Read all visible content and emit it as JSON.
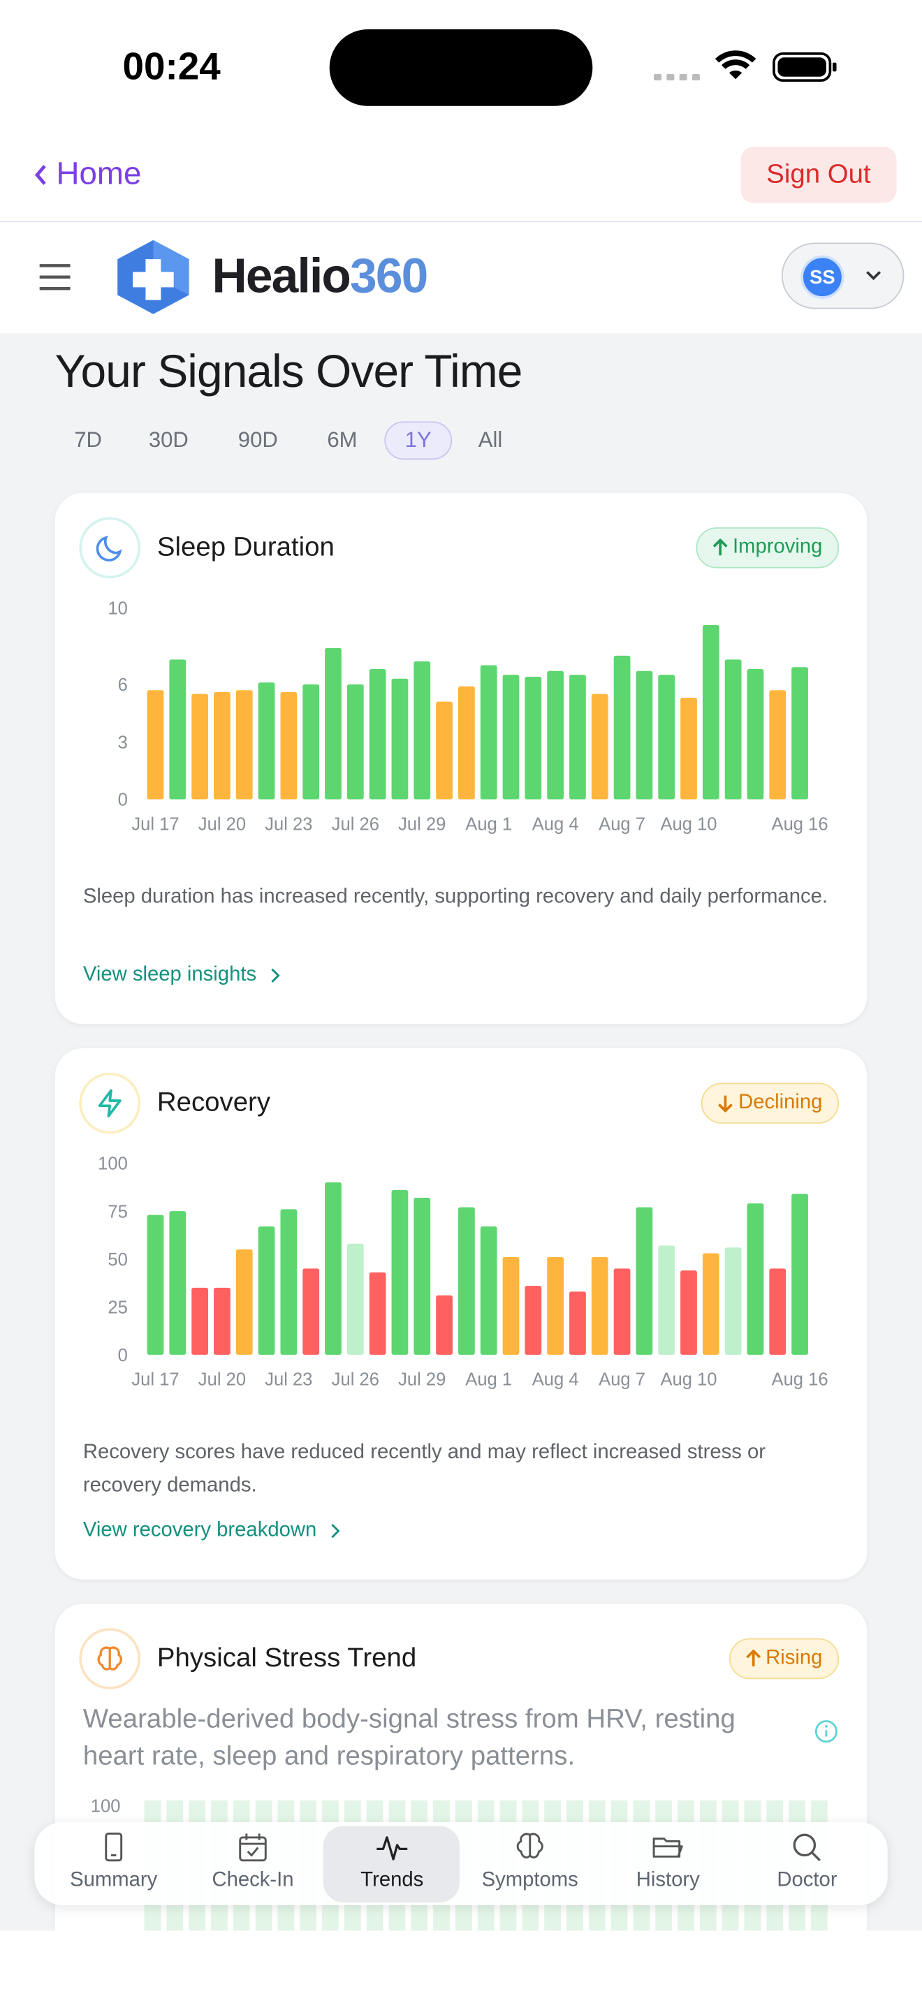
{
  "status_bar": {
    "time": "00:24"
  },
  "top_nav": {
    "back": "Home",
    "sign_out": "Sign Out"
  },
  "header": {
    "brand": "Healio",
    "brand_accent": "360",
    "avatar": "SS"
  },
  "page": {
    "title": "Your Signals Over Time",
    "ranges": [
      "7D",
      "30D",
      "90D",
      "6M",
      "1Y",
      "All"
    ],
    "active_range": "1Y"
  },
  "cards": [
    {
      "title": "Sleep Duration",
      "badge": "Improving",
      "chart": {
        "type": "bar",
        "categories": [
          "Jul 17",
          null,
          null,
          "Jul 20",
          null,
          null,
          "Jul 23",
          null,
          null,
          "Jul 26",
          null,
          null,
          "Jul 29",
          null,
          null,
          "Aug 1",
          null,
          null,
          "Aug 4",
          null,
          null,
          "Aug 7",
          null,
          null,
          "Aug 10",
          null,
          null,
          null,
          null,
          "Aug 16"
        ],
        "values": [
          5.7,
          7.3,
          5.5,
          5.6,
          5.7,
          6.1,
          5.6,
          6.0,
          7.9,
          6.0,
          6.8,
          6.3,
          7.2,
          5.1,
          5.9,
          7.0,
          6.5,
          6.4,
          6.7,
          6.5,
          5.5,
          7.5,
          6.7,
          6.5,
          5.3,
          9.1,
          7.3,
          6.8,
          5.7,
          6.9
        ],
        "colors": [
          "#ffb53d",
          "#5dd66f",
          "#ffb53d",
          "#ffb53d",
          "#ffb53d",
          "#5dd66f",
          "#ffb53d",
          "#5dd66f",
          "#5dd66f",
          "#5dd66f",
          "#5dd66f",
          "#5dd66f",
          "#5dd66f",
          "#ffb53d",
          "#ffb53d",
          "#5dd66f",
          "#5dd66f",
          "#5dd66f",
          "#5dd66f",
          "#5dd66f",
          "#ffb53d",
          "#5dd66f",
          "#5dd66f",
          "#5dd66f",
          "#ffb53d",
          "#5dd66f",
          "#5dd66f",
          "#5dd66f",
          "#ffb53d",
          "#5dd66f"
        ],
        "ylim": [
          0,
          10
        ],
        "yticks": [
          0,
          3,
          6,
          10
        ]
      },
      "description": "Sleep duration has increased recently, supporting recovery and daily performance.",
      "link": "View sleep insights"
    },
    {
      "title": "Recovery",
      "badge": "Declining",
      "chart": {
        "type": "bar",
        "categories": [
          "Jul 17",
          null,
          null,
          "Jul 20",
          null,
          null,
          "Jul 23",
          null,
          null,
          "Jul 26",
          null,
          null,
          "Jul 29",
          null,
          null,
          "Aug 1",
          null,
          null,
          "Aug 4",
          null,
          null,
          "Aug 7",
          null,
          null,
          "Aug 10",
          null,
          null,
          null,
          null,
          "Aug 16"
        ],
        "values": [
          73,
          75,
          35,
          35,
          55,
          67,
          76,
          45,
          90,
          58,
          43,
          86,
          82,
          31,
          77,
          67,
          51,
          36,
          51,
          33,
          51,
          45,
          77,
          57,
          44,
          53,
          56,
          79,
          45,
          84
        ],
        "colors": [
          "#5dd66f",
          "#5dd66f",
          "#ff6161",
          "#ff6161",
          "#ffb53d",
          "#5dd66f",
          "#5dd66f",
          "#ff6161",
          "#5dd66f",
          "#bff0cc",
          "#ff6161",
          "#5dd66f",
          "#5dd66f",
          "#ff6161",
          "#5dd66f",
          "#5dd66f",
          "#ffb53d",
          "#ff6161",
          "#ffb53d",
          "#ff6161",
          "#ffb53d",
          "#ff6161",
          "#5dd66f",
          "#bff0cc",
          "#ff6161",
          "#ffb53d",
          "#bff0cc",
          "#5dd66f",
          "#ff6161",
          "#5dd66f"
        ],
        "ylim": [
          0,
          100
        ],
        "yticks": [
          0,
          25,
          50,
          75,
          100
        ]
      },
      "description": "Recovery scores have reduced recently and may reflect increased stress or recovery demands.",
      "link": "View recovery breakdown"
    },
    {
      "title": "Physical Stress Trend",
      "badge": "Rising",
      "description": "Wearable-derived body-signal stress from HRV, resting heart rate, sleep and respiratory patterns.",
      "axis_top": "100"
    }
  ],
  "bottom_nav": [
    "Summary",
    "Check-In",
    "Trends",
    "Symptoms",
    "History",
    "Doctor"
  ],
  "active_nav": "Trends"
}
